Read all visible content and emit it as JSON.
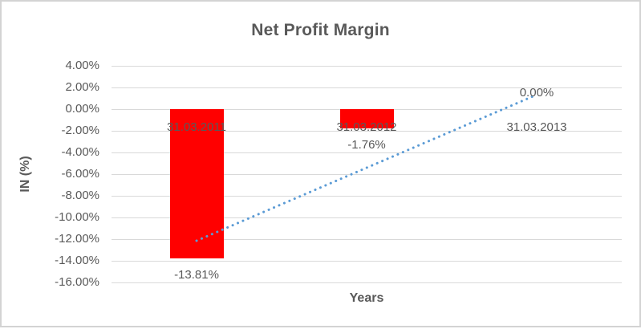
{
  "chart_data": {
    "type": "bar",
    "title": "Net Profit Margin",
    "xlabel": "Years",
    "ylabel": "IN (%)",
    "categories": [
      "31.03.2011",
      "31.03.2012",
      "31.03.2013"
    ],
    "series": [
      {
        "name": "Net Profit Margin",
        "values": [
          -13.81,
          -1.76,
          0.0
        ]
      }
    ],
    "data_labels": [
      "-13.81%",
      "-1.76%",
      "0.00%"
    ],
    "ylim": [
      -16,
      4
    ],
    "ytick_step": 2,
    "ytick_labels": [
      "4.00%",
      "2.00%",
      "0.00%",
      "-2.00%",
      "-4.00%",
      "-6.00%",
      "-8.00%",
      "-10.00%",
      "-12.00%",
      "-14.00%",
      "-16.00%"
    ],
    "grid": true,
    "legend": "none",
    "trendline": {
      "type": "linear",
      "style": "dotted",
      "start": {
        "category": "31.03.2011",
        "value": -12.15
      },
      "end": {
        "category": "31.03.2013",
        "value": 1.33
      }
    },
    "colors": {
      "bar": "#ff0000",
      "trendline": "#5b9bd5",
      "grid": "#d9d9d9",
      "text": "#595959",
      "border": "#d3d3d3",
      "background": "#ffffff"
    }
  }
}
